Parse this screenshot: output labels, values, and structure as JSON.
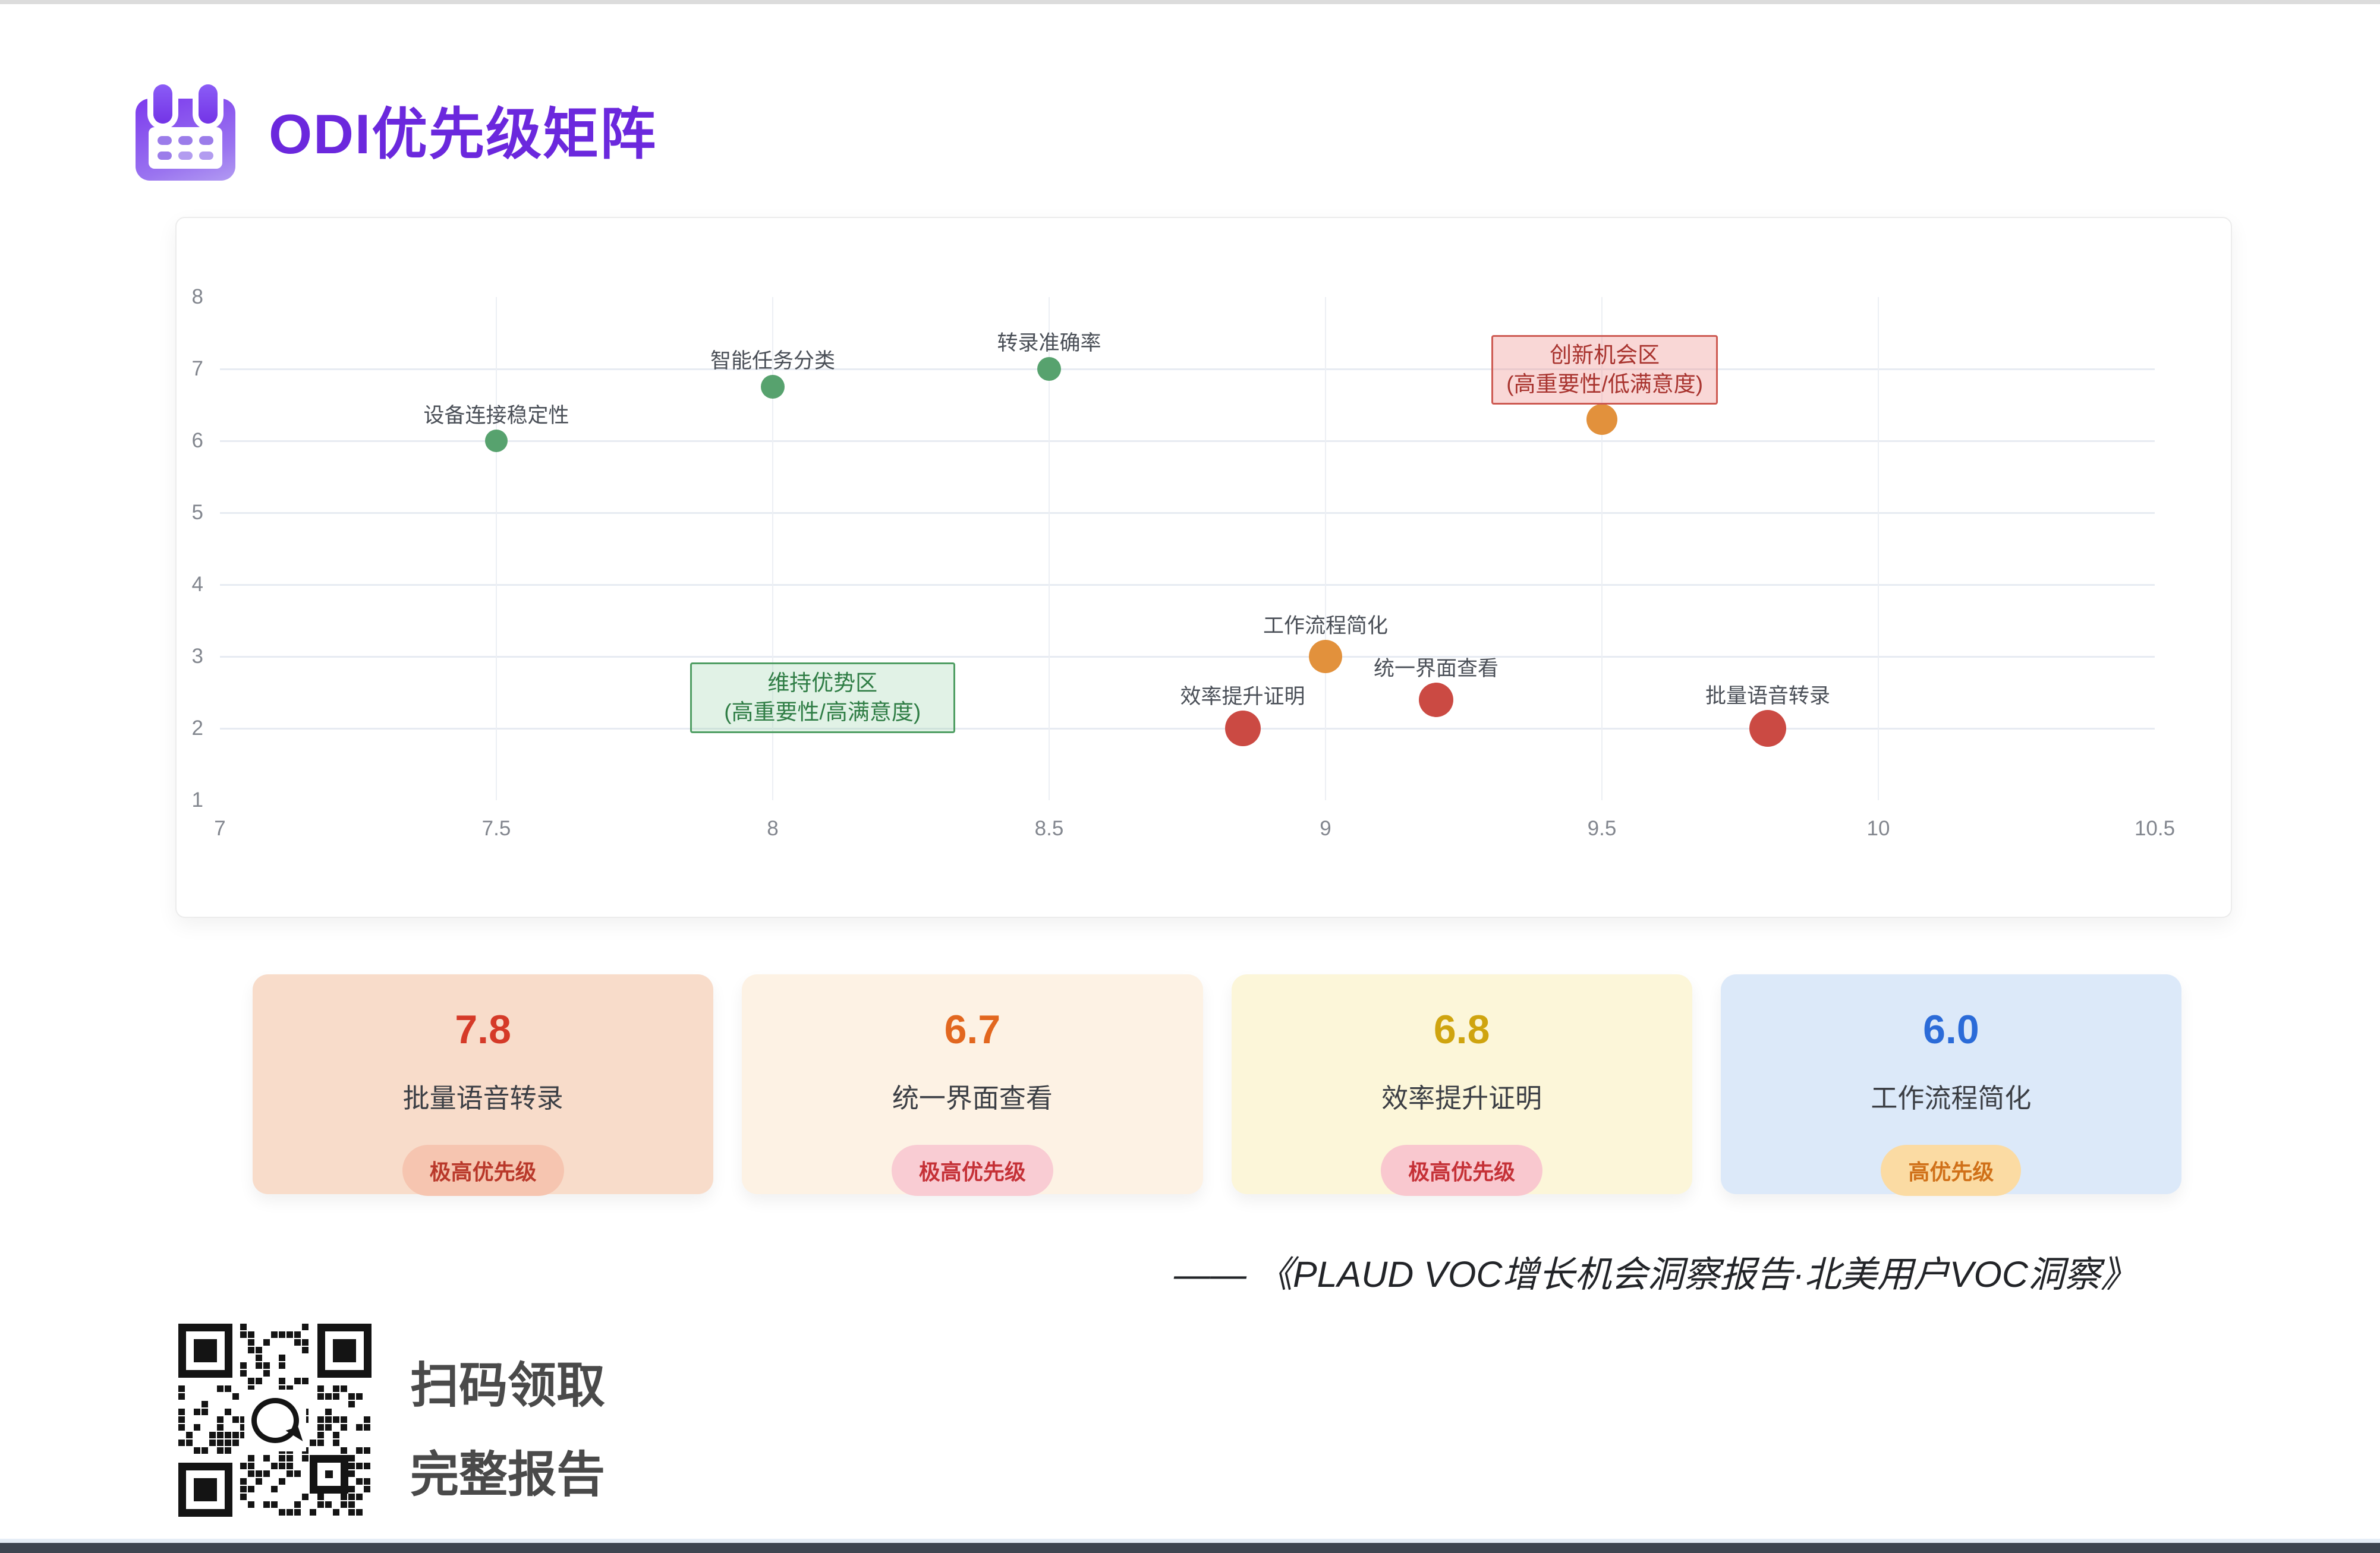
{
  "header": {
    "title": "ODI优先级矩阵",
    "icon": "calendar-icon",
    "accent_color": "#6b28dd"
  },
  "chart_data": {
    "type": "scatter",
    "title": "",
    "xlabel": "",
    "ylabel": "",
    "xlim": [
      7,
      10.5
    ],
    "ylim": [
      1,
      8
    ],
    "x_ticks": [
      7,
      7.5,
      8,
      8.5,
      9,
      9.5,
      10,
      10.5
    ],
    "y_ticks": [
      1,
      2,
      3,
      4,
      5,
      6,
      7,
      8
    ],
    "grid": {
      "h_lines": [
        2,
        3,
        4,
        5,
        6,
        7
      ],
      "v_lines": [
        7.5,
        8,
        8.5,
        9,
        9.5,
        10
      ]
    },
    "legend": "none",
    "points": [
      {
        "label": "设备连接稳定性",
        "x": 7.5,
        "y": 6.0,
        "color": "#57a26e",
        "size": 38
      },
      {
        "label": "智能任务分类",
        "x": 8.0,
        "y": 6.75,
        "color": "#57a26e",
        "size": 40
      },
      {
        "label": "转录准确率",
        "x": 8.5,
        "y": 7.0,
        "color": "#57a26e",
        "size": 40
      },
      {
        "label": "",
        "x": 9.5,
        "y": 6.3,
        "color": "#e2913c",
        "size": 52
      },
      {
        "label": "工作流程简化",
        "x": 9.0,
        "y": 3.0,
        "color": "#e2913c",
        "size": 56
      },
      {
        "label": "统一界面查看",
        "x": 9.2,
        "y": 2.4,
        "color": "#cb4a43",
        "size": 58
      },
      {
        "label": "效率提升证明",
        "x": 8.85,
        "y": 2.0,
        "color": "#cb4a43",
        "size": 60
      },
      {
        "label": "批量语音转录",
        "x": 9.8,
        "y": 2.0,
        "color": "#cb4a43",
        "size": 62
      }
    ],
    "zones": [
      {
        "lines": [
          "维持优势区",
          "(高重要性/高满意度)"
        ],
        "x0": 7.85,
        "x1": 8.33,
        "y0": 1.93,
        "y1": 2.92,
        "fill": "rgba(140,205,160,0.26)",
        "border": "#4f9e63",
        "text_color": "#2f7d45"
      },
      {
        "lines": [
          "创新机会区",
          "(高重要性/低满意度)"
        ],
        "x0": 9.3,
        "x1": 9.71,
        "y0": 6.5,
        "y1": 7.47,
        "fill": "rgba(235,130,128,0.32)",
        "border": "#cd5a52",
        "text_color": "#a8332e"
      }
    ]
  },
  "cards": [
    {
      "value": "7.8",
      "label": "批量语音转录",
      "badge": "极高优先级",
      "bg": "#f8dcca",
      "value_color": "#d53a28",
      "badge_bg": "#f6c5b0",
      "badge_color": "#b9382a"
    },
    {
      "value": "6.7",
      "label": "统一界面查看",
      "badge": "极高优先级",
      "bg": "#fdf2e4",
      "value_color": "#e2671f",
      "badge_bg": "#f9ccd3",
      "badge_color": "#c53137"
    },
    {
      "value": "6.8",
      "label": "效率提升证明",
      "badge": "极高优先级",
      "bg": "#fcf6d9",
      "value_color": "#cfa40f",
      "badge_bg": "#f9c8cf",
      "badge_color": "#c53137"
    },
    {
      "value": "6.0",
      "label": "工作流程简化",
      "badge": "高优先级",
      "bg": "#dce9f9",
      "value_color": "#2b6bd8",
      "badge_bg": "#fbdba3",
      "badge_color": "#d07018"
    }
  ],
  "citation": {
    "text": "—— 《PLAUD VOC增长机会洞察报告·北美用户VOC洞察》"
  },
  "qr": {
    "line1": "扫码领取",
    "line2": "完整报告"
  }
}
